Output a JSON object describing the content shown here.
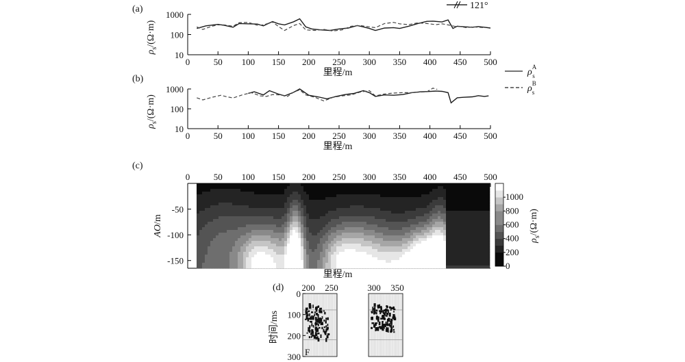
{
  "chart_data": [
    {
      "panel": "(a)",
      "type": "line",
      "x_axis": {
        "label": "里程/m",
        "ticks": [
          "0",
          "50",
          "100",
          "150",
          "200",
          "250",
          "300",
          "350",
          "400",
          "450",
          "500"
        ],
        "range": [
          0,
          500
        ]
      },
      "y_axis": {
        "label_parts": [
          "ρ",
          "s",
          "/(Ω·m)"
        ],
        "scale": "log",
        "ticks": [
          "10",
          "100",
          "1000"
        ],
        "range": [
          10,
          1000
        ]
      },
      "annotation": "121°",
      "series": [
        {
          "style": "solid",
          "x": [
            15,
            30,
            50,
            60,
            75,
            85,
            100,
            115,
            125,
            140,
            150,
            160,
            175,
            185,
            195,
            205,
            220,
            235,
            250,
            265,
            280,
            290,
            300,
            310,
            325,
            340,
            350,
            365,
            380,
            395,
            405,
            420,
            430,
            438,
            445,
            460,
            470,
            480,
            490,
            500
          ],
          "values": [
            200,
            270,
            320,
            290,
            230,
            350,
            340,
            330,
            270,
            440,
            340,
            300,
            430,
            600,
            240,
            190,
            170,
            160,
            190,
            210,
            280,
            240,
            200,
            160,
            210,
            220,
            200,
            260,
            350,
            450,
            460,
            420,
            530,
            200,
            260,
            240,
            230,
            250,
            230,
            210
          ]
        },
        {
          "style": "dashed",
          "x": [
            15,
            25,
            40,
            50,
            60,
            75,
            85,
            100,
            115,
            125,
            140,
            150,
            160,
            175,
            185,
            195,
            210,
            225,
            240,
            255,
            270,
            285,
            300,
            310,
            325,
            340,
            350,
            365,
            380,
            395,
            410,
            420,
            430,
            440,
            450,
            460,
            470,
            480,
            490
          ],
          "values": [
            240,
            180,
            260,
            300,
            300,
            260,
            390,
            400,
            290,
            300,
            420,
            250,
            160,
            280,
            350,
            170,
            160,
            180,
            150,
            170,
            260,
            280,
            240,
            220,
            350,
            400,
            340,
            310,
            380,
            350,
            310,
            340,
            300,
            260,
            250,
            220,
            240,
            230,
            220
          ]
        }
      ]
    },
    {
      "panel": "(b)",
      "type": "line",
      "x_axis": {
        "label": "里程/m",
        "ticks": [
          "0",
          "50",
          "100",
          "150",
          "200",
          "250",
          "300",
          "350",
          "400",
          "450",
          "500"
        ],
        "range": [
          0,
          500
        ]
      },
      "y_axis": {
        "label_parts": [
          "ρ",
          "s",
          "/(Ω·m)"
        ],
        "scale": "log",
        "ticks": [
          "10",
          "100",
          "1000"
        ],
        "range": [
          10,
          1000
        ]
      },
      "legend": [
        {
          "style": "solid",
          "symbol": "ρ",
          "sub": "s",
          "sup": "A"
        },
        {
          "style": "dashed",
          "symbol": "ρ",
          "sub": "s",
          "sup": "B"
        }
      ],
      "series": [
        {
          "style": "solid",
          "x": [
            100,
            110,
            125,
            135,
            150,
            160,
            175,
            185,
            200,
            215,
            230,
            245,
            260,
            275,
            290,
            300,
            310,
            325,
            340,
            355,
            370,
            385,
            395,
            410,
            420,
            430,
            435,
            445,
            455,
            470,
            480,
            490,
            497
          ],
          "values": [
            600,
            720,
            500,
            820,
            550,
            450,
            680,
            1000,
            480,
            400,
            320,
            420,
            520,
            600,
            820,
            650,
            420,
            500,
            480,
            520,
            650,
            720,
            740,
            780,
            760,
            650,
            200,
            360,
            380,
            400,
            460,
            420,
            450
          ]
        },
        {
          "style": "dashed",
          "x": [
            15,
            25,
            40,
            55,
            65,
            75,
            90,
            105,
            120,
            130,
            140,
            155,
            165,
            175,
            185,
            195,
            210,
            225,
            240,
            255,
            270,
            285,
            300,
            310,
            325,
            340,
            355,
            370,
            385,
            395,
            405,
            412
          ],
          "values": [
            360,
            280,
            380,
            480,
            400,
            350,
            500,
            650,
            450,
            420,
            520,
            500,
            420,
            700,
            900,
            500,
            380,
            250,
            380,
            450,
            500,
            700,
            820,
            450,
            560,
            620,
            650,
            650,
            700,
            720,
            1100,
            950
          ]
        }
      ]
    },
    {
      "panel": "(c)",
      "type": "heatmap",
      "x_axis": {
        "label": "里程/m",
        "ticks": [
          "0",
          "50",
          "100",
          "150",
          "200",
          "250",
          "300",
          "350",
          "400",
          "450",
          "500"
        ],
        "range": [
          0,
          500
        ]
      },
      "y_axis": {
        "label": "AO/m",
        "ticks": [
          "-50",
          "-100",
          "-150"
        ],
        "range": [
          -165,
          0
        ]
      },
      "colorbar": {
        "label_parts": [
          "ρ",
          "s",
          "/(Ω·m)"
        ],
        "ticks": [
          "0",
          "200",
          "400",
          "600",
          "800",
          "1000"
        ],
        "range": [
          0,
          1200
        ]
      }
    },
    {
      "panel": "(d)",
      "type": "other",
      "y_axis": {
        "label": "时间/ms",
        "ticks": [
          "0",
          "100",
          "200",
          "300"
        ]
      },
      "sections": [
        {
          "x_ticks": [
            "200",
            "250"
          ],
          "label": "F"
        },
        {
          "x_ticks": [
            "300",
            "350"
          ]
        }
      ]
    }
  ]
}
